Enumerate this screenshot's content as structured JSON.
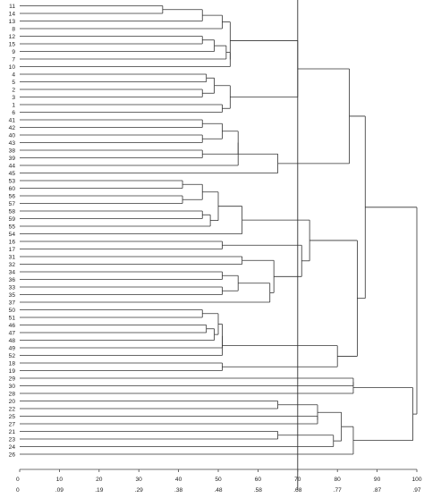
{
  "chart_data": {
    "type": "dendrogram",
    "orientation": "horizontal",
    "title": "",
    "xlabel": "",
    "ylabel": "",
    "xlim": [
      0,
      100
    ],
    "grid": false,
    "legend": "none",
    "leaf_order": [
      "11",
      "14",
      "13",
      "8",
      "12",
      "15",
      "9",
      "7",
      "10",
      "4",
      "5",
      "2",
      "3",
      "1",
      "6",
      "41",
      "42",
      "40",
      "43",
      "38",
      "39",
      "44",
      "45",
      "53",
      "60",
      "56",
      "57",
      "58",
      "59",
      "55",
      "54",
      "16",
      "17",
      "31",
      "32",
      "34",
      "36",
      "33",
      "35",
      "37",
      "50",
      "51",
      "46",
      "47",
      "48",
      "49",
      "52",
      "18",
      "19",
      "29",
      "30",
      "28",
      "20",
      "22",
      "25",
      "27",
      "21",
      "23",
      "24",
      "26"
    ],
    "x_ticks_top": [
      "0",
      "10",
      "20",
      "30",
      "40",
      "50",
      "60",
      "70",
      "80",
      "90",
      "100"
    ],
    "x_ticks_top_values": [
      0,
      10,
      20,
      30,
      40,
      50,
      60,
      70,
      80,
      90,
      100
    ],
    "x_ticks_bottom": [
      "0",
      ".09",
      ".19",
      ".29",
      ".38",
      ".48",
      ".58",
      ".68",
      ".77",
      ".87",
      ".97"
    ],
    "cutoff_line": 70,
    "merges": [
      {
        "members": [
          "11",
          "14"
        ],
        "height": 36
      },
      {
        "members": [
          "11-14",
          "13"
        ],
        "height": 46
      },
      {
        "members": [
          "11-14-13",
          "8"
        ],
        "height": 51
      },
      {
        "members": [
          "12",
          "15"
        ],
        "height": 46
      },
      {
        "members": [
          "12-15",
          "9"
        ],
        "height": 49
      },
      {
        "members": [
          "12-15-9",
          "7"
        ],
        "height": 52
      },
      {
        "members": [
          "12-15-9-7",
          "10"
        ],
        "height": 53
      },
      {
        "members": [
          "11..8",
          "12..10"
        ],
        "height": 53
      },
      {
        "members": [
          "4",
          "5"
        ],
        "height": 47
      },
      {
        "members": [
          "2",
          "3"
        ],
        "height": 46
      },
      {
        "members": [
          "4-5",
          "2-3"
        ],
        "height": 49
      },
      {
        "members": [
          "1",
          "6"
        ],
        "height": 51
      },
      {
        "members": [
          "4..3",
          "1-6"
        ],
        "height": 53
      },
      {
        "members": [
          "11..10",
          "4..6"
        ],
        "height": 70
      },
      {
        "members": [
          "41",
          "42"
        ],
        "height": 46
      },
      {
        "members": [
          "40",
          "43"
        ],
        "height": 46
      },
      {
        "members": [
          "41-42",
          "40-43"
        ],
        "height": 51
      },
      {
        "members": [
          "38",
          "39"
        ],
        "height": 46
      },
      {
        "members": [
          "41..43",
          "38-39"
        ],
        "height": 55
      },
      {
        "members": [
          "41..39",
          "44"
        ],
        "height": 55
      },
      {
        "members": [
          "41..44",
          "45"
        ],
        "height": 65
      },
      {
        "members": [
          "11..6",
          "41..45"
        ],
        "height": 83
      },
      {
        "members": [
          "53",
          "60"
        ],
        "height": 41
      },
      {
        "members": [
          "56",
          "57"
        ],
        "height": 41
      },
      {
        "members": [
          "53-60",
          "56-57"
        ],
        "height": 46
      },
      {
        "members": [
          "58",
          "59"
        ],
        "height": 46
      },
      {
        "members": [
          "58-59",
          "55"
        ],
        "height": 48
      },
      {
        "members": [
          "53..57",
          "58..55"
        ],
        "height": 50
      },
      {
        "members": [
          "53..55",
          "54"
        ],
        "height": 56
      },
      {
        "members": [
          "16",
          "17"
        ],
        "height": 51
      },
      {
        "members": [
          "31",
          "32"
        ],
        "height": 56
      },
      {
        "members": [
          "34",
          "36"
        ],
        "height": 51
      },
      {
        "members": [
          "33",
          "35"
        ],
        "height": 51
      },
      {
        "members": [
          "34-36",
          "33-35"
        ],
        "height": 55
      },
      {
        "members": [
          "34..35",
          "37"
        ],
        "height": 63
      },
      {
        "members": [
          "31-32",
          "34..37"
        ],
        "height": 64
      },
      {
        "members": [
          "16-17",
          "31..37"
        ],
        "height": 71
      },
      {
        "members": [
          "53..54",
          "16..37"
        ],
        "height": 73
      },
      {
        "members": [
          "50",
          "51"
        ],
        "height": 46
      },
      {
        "members": [
          "46",
          "47"
        ],
        "height": 47
      },
      {
        "members": [
          "46-47",
          "48"
        ],
        "height": 49
      },
      {
        "members": [
          "50-51",
          "46..48"
        ],
        "height": 50
      },
      {
        "members": [
          "50..48",
          "49"
        ],
        "height": 51
      },
      {
        "members": [
          "50..49",
          "52"
        ],
        "height": 51
      },
      {
        "members": [
          "18",
          "19"
        ],
        "height": 51
      },
      {
        "members": [
          "50..52",
          "18-19"
        ],
        "height": 80
      },
      {
        "members": [
          "53..37",
          "50..19"
        ],
        "height": 85
      },
      {
        "members": [
          "11..45",
          "53..19"
        ],
        "height": 87
      },
      {
        "members": [
          "29",
          "30"
        ],
        "height": 84
      },
      {
        "members": [
          "29-30",
          "28"
        ],
        "height": 84
      },
      {
        "members": [
          "20",
          "22"
        ],
        "height": 65
      },
      {
        "members": [
          "25",
          "27"
        ],
        "height": 75
      },
      {
        "members": [
          "20-22",
          "25-27"
        ],
        "height": 75
      },
      {
        "members": [
          "21",
          "23"
        ],
        "height": 65
      },
      {
        "members": [
          "21-23",
          "24"
        ],
        "height": 79
      },
      {
        "members": [
          "20..27",
          "21..24"
        ],
        "height": 81
      },
      {
        "members": [
          "20..24",
          "26"
        ],
        "height": 84
      },
      {
        "members": [
          "29..28",
          "20..26"
        ],
        "height": 99
      },
      {
        "members": [
          "11..19",
          "29..26"
        ],
        "height": 100
      }
    ]
  },
  "colors": {
    "line": "#333333",
    "axis": "#444444",
    "cutoff": "#333333",
    "text": "#222222"
  }
}
